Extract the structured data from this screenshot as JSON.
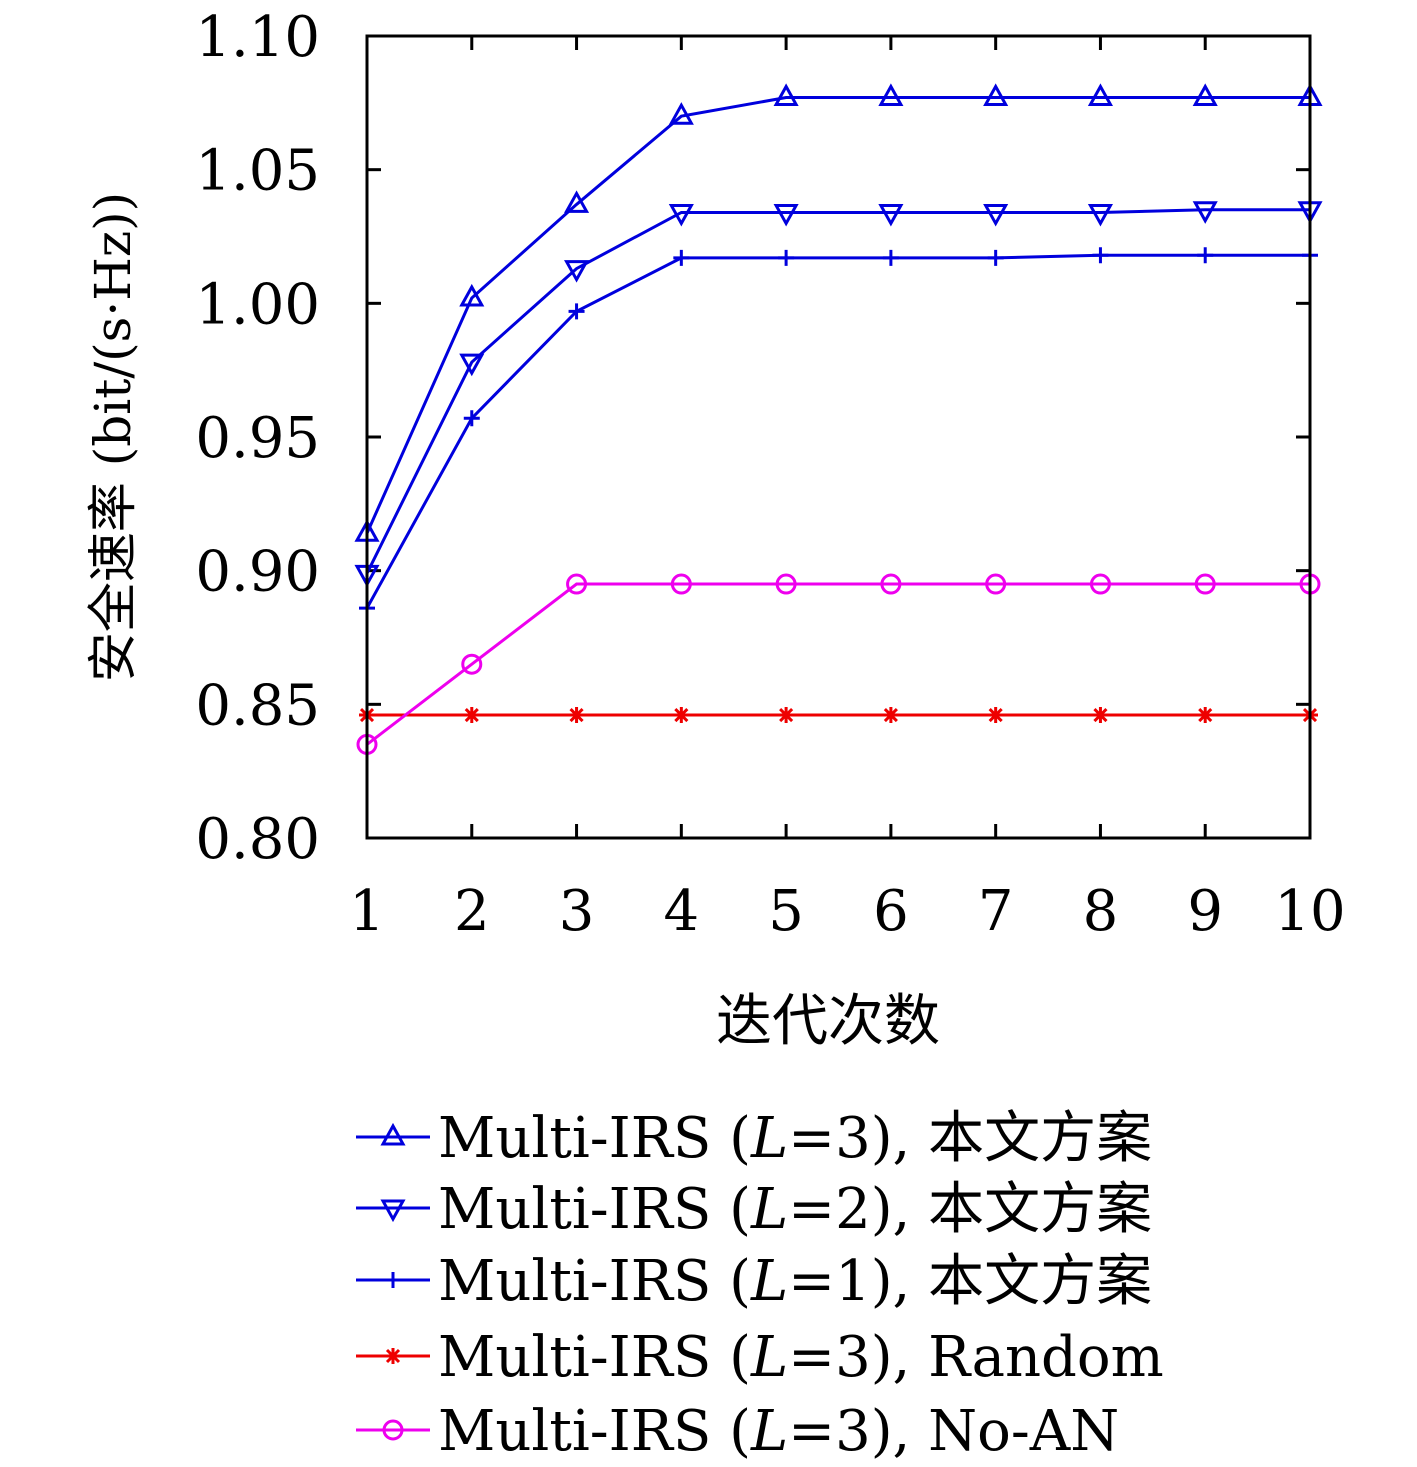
{
  "chart_data": {
    "type": "line",
    "xlabel": "迭代次数",
    "ylabel": "安全速率 (bit/(s·Hz))",
    "xlim": [
      1,
      10
    ],
    "ylim": [
      0.8,
      1.1
    ],
    "xticks": [
      "1",
      "2",
      "3",
      "4",
      "5",
      "6",
      "7",
      "8",
      "9",
      "10"
    ],
    "yticks": [
      "0.80",
      "0.85",
      "0.90",
      "0.95",
      "1.00",
      "1.05",
      "1.10"
    ],
    "grid": false,
    "legend_position": "bottom",
    "x": [
      1,
      2,
      3,
      4,
      5,
      6,
      7,
      8,
      9,
      10
    ],
    "series": [
      {
        "name": "Multi-IRS (L=3), 本文方案",
        "legend_prefix": "Multi-IRS (",
        "legend_var": "L",
        "legend_suffix": "=3), 本文方案",
        "color": "#0000dd",
        "marker": "triangle-up",
        "values": [
          0.914,
          1.002,
          1.037,
          1.07,
          1.077,
          1.077,
          1.077,
          1.077,
          1.077,
          1.077
        ]
      },
      {
        "name": "Multi-IRS (L=2), 本文方案",
        "legend_prefix": "Multi-IRS (",
        "legend_var": "L",
        "legend_suffix": "=2), 本文方案",
        "color": "#0000dd",
        "marker": "triangle-down",
        "values": [
          0.899,
          0.978,
          1.013,
          1.034,
          1.034,
          1.034,
          1.034,
          1.034,
          1.035,
          1.035
        ]
      },
      {
        "name": "Multi-IRS (L=1), 本文方案",
        "legend_prefix": "Multi-IRS (",
        "legend_var": "L",
        "legend_suffix": "=1), 本文方案",
        "color": "#0000dd",
        "marker": "plus",
        "values": [
          0.886,
          0.957,
          0.997,
          1.017,
          1.017,
          1.017,
          1.017,
          1.018,
          1.018,
          1.018
        ]
      },
      {
        "name": "Multi-IRS (L=3), Random",
        "legend_prefix": "Multi-IRS (",
        "legend_var": "L",
        "legend_suffix": "=3), Random",
        "color": "#ee0000",
        "marker": "asterisk",
        "values": [
          0.846,
          0.846,
          0.846,
          0.846,
          0.846,
          0.846,
          0.846,
          0.846,
          0.846,
          0.846
        ]
      },
      {
        "name": "Multi-IRS (L=3), No-AN",
        "legend_prefix": "Multi-IRS (",
        "legend_var": "L",
        "legend_suffix": "=3), No-AN",
        "color": "#ee00ee",
        "marker": "circle",
        "values": [
          0.835,
          0.865,
          0.895,
          0.895,
          0.895,
          0.895,
          0.895,
          0.895,
          0.895,
          0.895
        ]
      }
    ]
  }
}
